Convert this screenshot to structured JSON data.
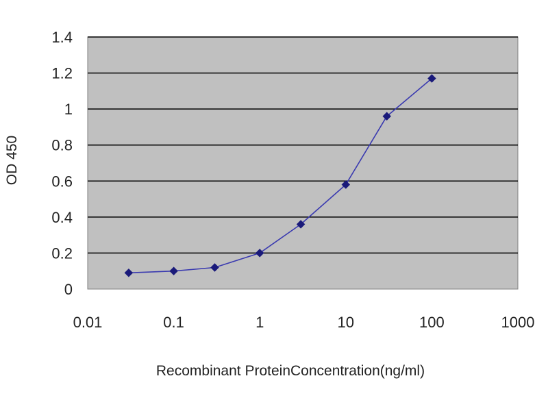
{
  "chart_data": {
    "type": "line",
    "title": "",
    "xlabel": "Recombinant ProteinConcentration(ng/ml)",
    "ylabel": "OD 450",
    "x_scale": "log",
    "xlim": [
      0.01,
      1000
    ],
    "ylim": [
      0,
      1.4
    ],
    "x_ticks": [
      0.01,
      0.1,
      1,
      10,
      100,
      1000
    ],
    "x_tick_labels": [
      "0.01",
      "0.1",
      "1",
      "10",
      "100",
      "1000"
    ],
    "y_ticks": [
      0,
      0.2,
      0.4,
      0.6,
      0.8,
      1,
      1.2,
      1.4
    ],
    "y_tick_labels": [
      "0",
      "0.2",
      "0.4",
      "0.6",
      "0.8",
      "1",
      "1.2",
      "1.4"
    ],
    "grid": "horizontal",
    "legend": "none",
    "series": [
      {
        "x": [
          0.03,
          0.1,
          0.3,
          1,
          3,
          10,
          30,
          100
        ],
        "y": [
          0.09,
          0.1,
          0.12,
          0.2,
          0.36,
          0.58,
          0.96,
          1.17
        ],
        "color": "#1a1a7a"
      }
    ],
    "colors": {
      "plot_background": "#c0c0c0",
      "gridline": "#000000",
      "series_line": "#3a3ab0",
      "marker": "#1a1a7a"
    }
  }
}
